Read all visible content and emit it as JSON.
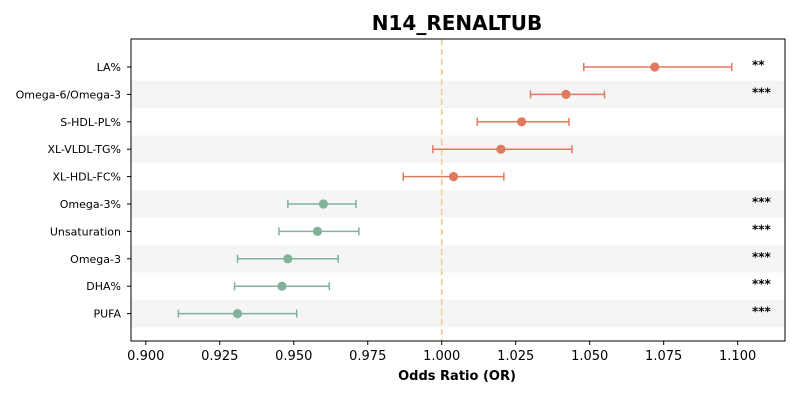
{
  "chart_data": {
    "type": "scatter",
    "title": "N14_RENALTUB",
    "xlabel": "Odds Ratio (OR)",
    "xlim": [
      0.895,
      1.116
    ],
    "xticks": [
      0.9,
      0.925,
      0.95,
      0.975,
      1.0,
      1.025,
      1.05,
      1.075,
      1.1
    ],
    "xtick_labels": [
      "0.900",
      "0.925",
      "0.950",
      "0.975",
      "1.000",
      "1.025",
      "1.050",
      "1.075",
      "1.100"
    ],
    "reference_line": 1.0,
    "colors": {
      "positive": "#e07a5f",
      "negative": "#81b29a",
      "reference": "#f2cc8f",
      "band": "#f5f5f5"
    },
    "rows": [
      {
        "label": "LA%",
        "or": 1.072,
        "ci": [
          1.048,
          1.098
        ],
        "sig": "**"
      },
      {
        "label": "Omega-6/Omega-3",
        "or": 1.042,
        "ci": [
          1.03,
          1.055
        ],
        "sig": "***"
      },
      {
        "label": "S-HDL-PL%",
        "or": 1.027,
        "ci": [
          1.012,
          1.043
        ],
        "sig": ""
      },
      {
        "label": "XL-VLDL-TG%",
        "or": 1.02,
        "ci": [
          0.997,
          1.044
        ],
        "sig": ""
      },
      {
        "label": "XL-HDL-FC%",
        "or": 1.004,
        "ci": [
          0.987,
          1.021
        ],
        "sig": ""
      },
      {
        "label": "Omega-3%",
        "or": 0.96,
        "ci": [
          0.948,
          0.971
        ],
        "sig": "***"
      },
      {
        "label": "Unsaturation",
        "or": 0.958,
        "ci": [
          0.945,
          0.972
        ],
        "sig": "***"
      },
      {
        "label": "Omega-3",
        "or": 0.948,
        "ci": [
          0.931,
          0.965
        ],
        "sig": "***"
      },
      {
        "label": "DHA%",
        "or": 0.946,
        "ci": [
          0.93,
          0.962
        ],
        "sig": "***"
      },
      {
        "label": "PUFA",
        "or": 0.931,
        "ci": [
          0.911,
          0.951
        ],
        "sig": "***"
      }
    ]
  }
}
